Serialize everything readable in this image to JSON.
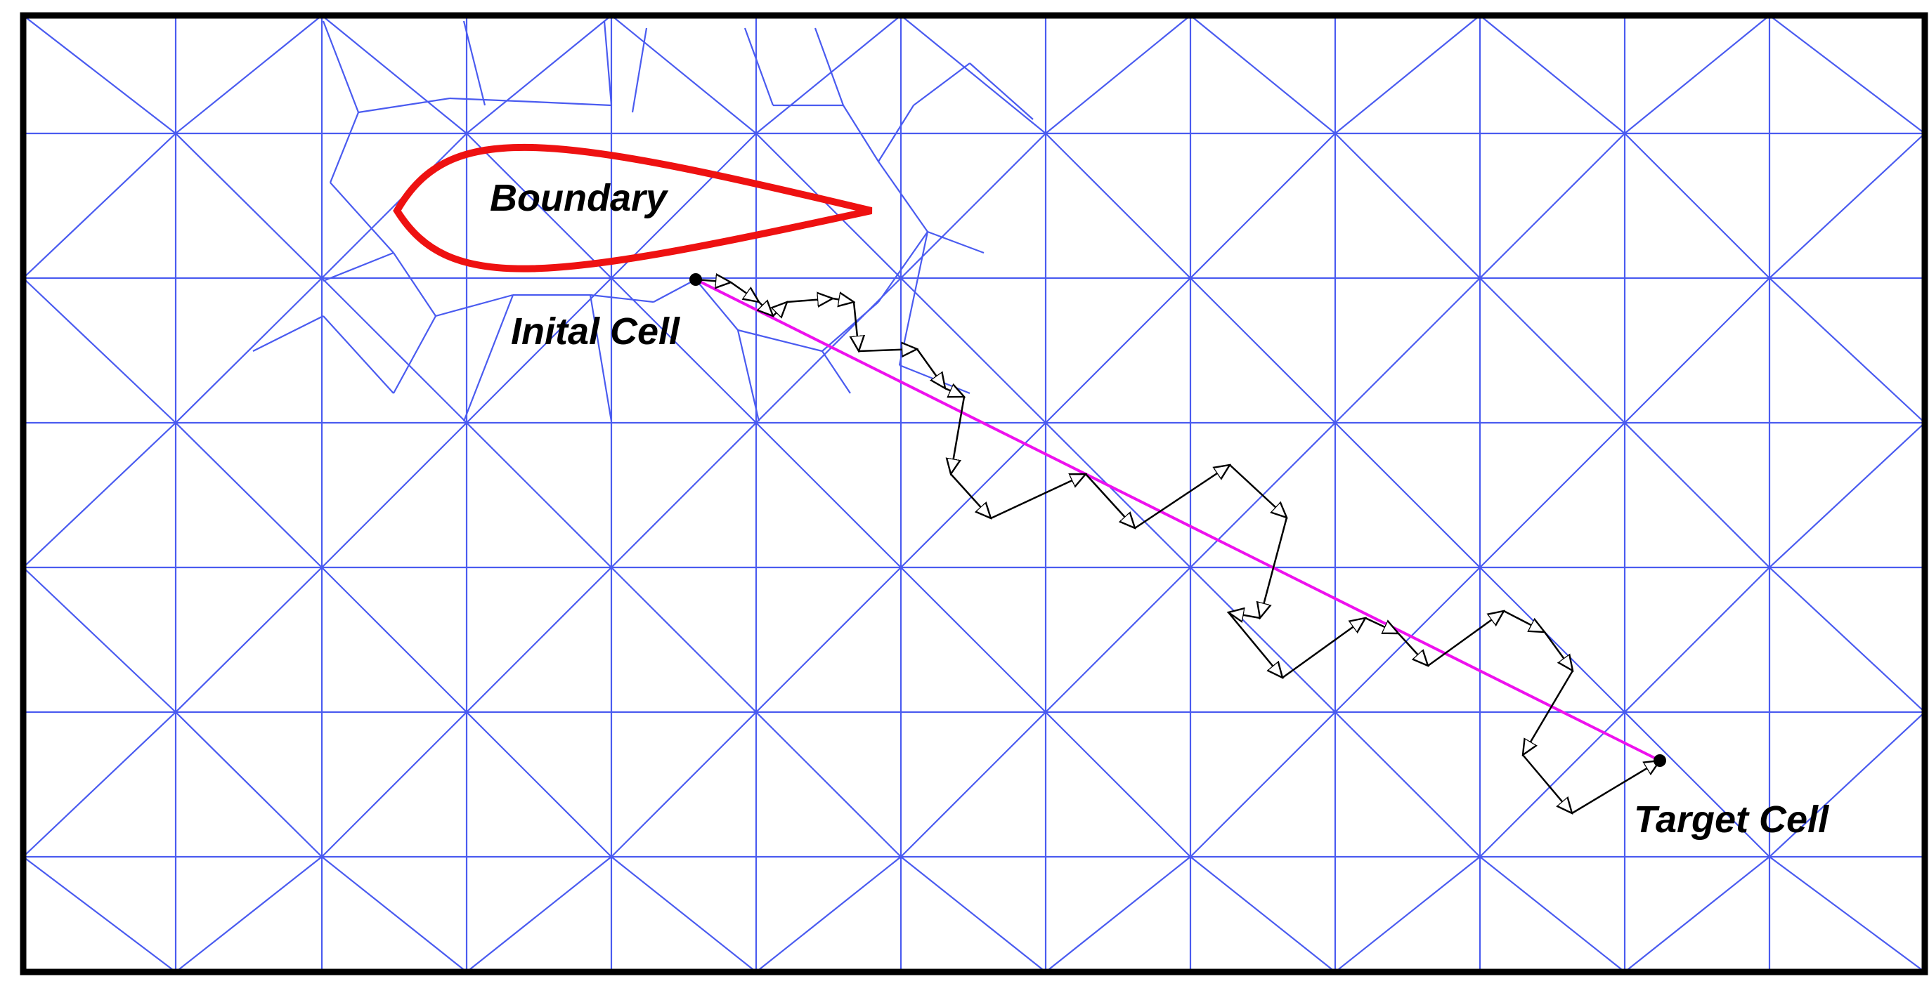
{
  "labels": {
    "boundary": "Boundary",
    "initial_cell": "Inital Cell",
    "target_cell": "Target Cell"
  },
  "colors": {
    "mesh": "#4a5bf0",
    "boundary": "#ee1111",
    "straight_line": "#ee11ee",
    "walk_path": "#000000",
    "frame": "#000000"
  }
}
